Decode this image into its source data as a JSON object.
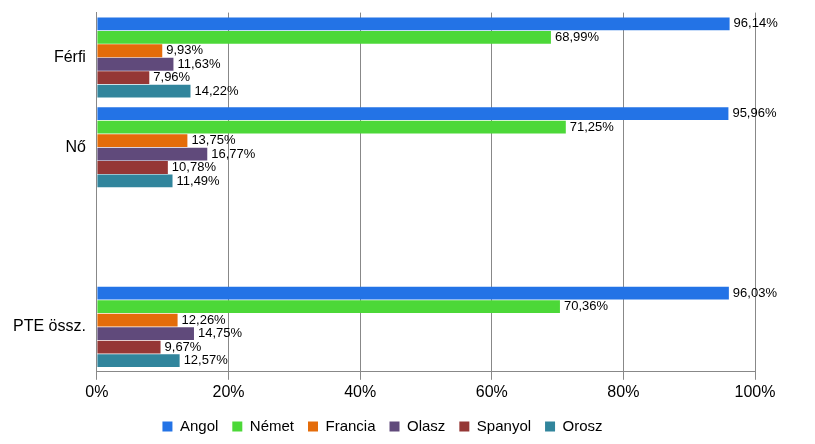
{
  "chart_data": {
    "type": "bar",
    "orientation": "horizontal",
    "categories": [
      "Férfi",
      "Nő",
      null,
      "PTE össz."
    ],
    "series": [
      {
        "name": "Angol",
        "color": "#2373e6",
        "values": [
          96.14,
          95.96,
          null,
          96.03
        ],
        "value_labels": [
          "96,14%",
          "95,96%",
          null,
          "96,03%"
        ]
      },
      {
        "name": "Német",
        "color": "#4cd838",
        "values": [
          68.99,
          71.25,
          null,
          70.36
        ],
        "value_labels": [
          "68,99%",
          "71,25%",
          null,
          "70,36%"
        ]
      },
      {
        "name": "Francia",
        "color": "#e46c0a",
        "values": [
          9.93,
          13.75,
          null,
          12.26
        ],
        "value_labels": [
          "9,93%",
          "13,75%",
          null,
          "12,26%"
        ]
      },
      {
        "name": "Olasz",
        "color": "#604a7b",
        "values": [
          11.63,
          16.77,
          null,
          14.75
        ],
        "value_labels": [
          "11,63%",
          "16,77%",
          null,
          "14,75%"
        ]
      },
      {
        "name": "Spanyol",
        "color": "#953735",
        "values": [
          7.96,
          10.78,
          null,
          9.67
        ],
        "value_labels": [
          "7,96%",
          "10,78%",
          null,
          "9,67%"
        ]
      },
      {
        "name": "Orosz",
        "color": "#31859c",
        "values": [
          14.22,
          11.49,
          null,
          12.57
        ],
        "value_labels": [
          "14,22%",
          "11,49%",
          null,
          "12,57%"
        ]
      }
    ],
    "xlim": [
      0,
      100
    ],
    "xticks": [
      {
        "value": 0,
        "label": "0%"
      },
      {
        "value": 20,
        "label": "20%"
      },
      {
        "value": 40,
        "label": "40%"
      },
      {
        "value": 60,
        "label": "60%"
      },
      {
        "value": 80,
        "label": "80%"
      },
      {
        "value": 100,
        "label": "100%"
      }
    ],
    "grid": true,
    "legend": "bottom",
    "data_labels": true
  }
}
